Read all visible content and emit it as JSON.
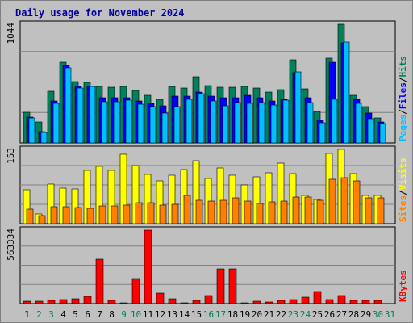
{
  "chart_data": {
    "title": "Daily usage for November 2024",
    "type": "bar",
    "days": [
      "1",
      "2",
      "3",
      "4",
      "5",
      "6",
      "7",
      "8",
      "9",
      "10",
      "11",
      "12",
      "13",
      "14",
      "15",
      "16",
      "17",
      "18",
      "19",
      "20",
      "21",
      "22",
      "23",
      "24",
      "25",
      "26",
      "27",
      "28",
      "29",
      "30",
      "31"
    ],
    "weekend_days": [
      "2",
      "3",
      "9",
      "10",
      "16",
      "17",
      "23",
      "24",
      "30",
      "31"
    ],
    "colors": {
      "background": "#c0c0c0",
      "plot_bg": "#c0c0c0",
      "hits": "#00805c",
      "files": "#0000ff",
      "pages": "#00c0ff",
      "visits": "#ffff00",
      "sites": "#ff8000",
      "kbytes": "#ff0000",
      "title": "#0000a0",
      "weekday_label": "#000000",
      "weekend_label": "#00805c"
    },
    "panels": [
      {
        "id": "requests",
        "ymax_label": "1044",
        "ymax": 1044,
        "legend": [
          "Pages",
          "Files",
          "Hits"
        ],
        "series": [
          {
            "name": "Hits",
            "values": [
              268,
              187,
              455,
              712,
              541,
              530,
              495,
              492,
              496,
              460,
              416,
              384,
              494,
              486,
              580,
              503,
              493,
              490,
              500,
              485,
              444,
              468,
              730,
              476,
              276,
              747,
              1044,
              422,
              320,
              218,
              0
            ]
          },
          {
            "name": "Files",
            "values": [
              230,
              100,
              370,
              680,
              500,
              500,
              400,
              395,
              400,
              370,
              345,
              330,
              415,
              410,
              450,
              415,
              400,
              400,
              420,
              400,
              370,
              380,
              620,
              400,
              200,
              710,
              880,
              380,
              260,
              185,
              0
            ]
          },
          {
            "name": "Pages",
            "values": [
              222,
              94,
              350,
              660,
              480,
              498,
              360,
              365,
              378,
              340,
              317,
              262,
              320,
              380,
              430,
              368,
              330,
              355,
              350,
              352,
              335,
              378,
              625,
              352,
              180,
              385,
              885,
              350,
              215,
              170,
              0
            ]
          }
        ]
      },
      {
        "id": "visitors",
        "ymax_label": "153",
        "ymax": 153,
        "legend": [
          "Sites",
          "Visits"
        ],
        "series": [
          {
            "name": "Visits",
            "values": [
              70,
              20,
              82,
              74,
              72,
              110,
              118,
              109,
              143,
              120,
              101,
              88,
              100,
              111,
              130,
              93,
              115,
              100,
              80,
              97,
              105,
              125,
              103,
              58,
              50,
              145,
              153,
              103,
              59,
              59,
              0
            ]
          },
          {
            "name": "Sites",
            "values": [
              30,
              16,
              35,
              35,
              33,
              31,
              36,
              36,
              39,
              43,
              43,
              38,
              40,
              58,
              48,
              46,
              48,
              53,
              46,
              42,
              45,
              46,
              55,
              55,
              49,
              91,
              94,
              88,
              54,
              54,
              0
            ]
          }
        ]
      },
      {
        "id": "kbytes",
        "ymax_label": "563334",
        "ymax": 563334,
        "legend": [
          "KBytes"
        ],
        "series": [
          {
            "name": "KBytes",
            "values": [
              18000,
              18000,
              24000,
              30000,
              36000,
              54000,
              342000,
              24000,
              6000,
              192000,
              563334,
              78000,
              36000,
              9000,
              24000,
              60000,
              264000,
              264000,
              6000,
              18000,
              12000,
              24000,
              30000,
              48000,
              90000,
              30000,
              60000,
              24000,
              24000,
              24000,
              0
            ]
          }
        ]
      }
    ]
  }
}
